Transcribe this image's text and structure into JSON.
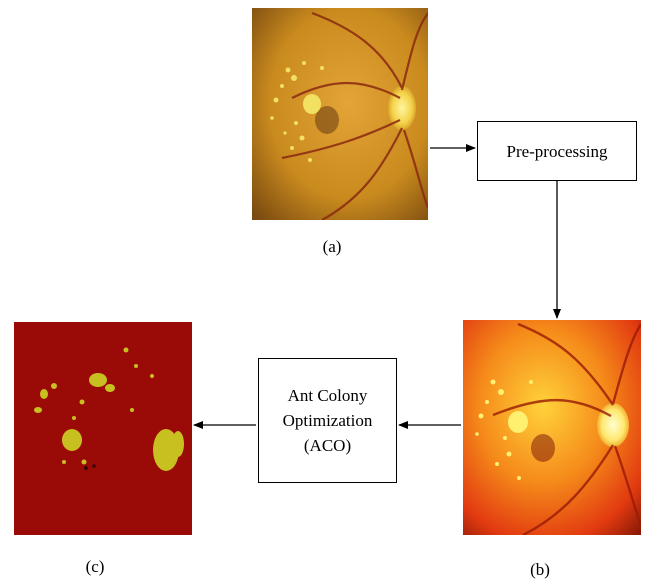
{
  "captions": {
    "a": "(a)",
    "b": "(b)",
    "c": "(c)"
  },
  "steps": {
    "preprocessing": "Pre-processing",
    "aco_line1": "Ant Colony",
    "aco_line2": "Optimization",
    "aco_line3": "(ACO)"
  },
  "colors": {
    "fundus_background": "#c98a1e",
    "enhanced_background": "#e83a10",
    "segmented_background": "#9a0a06",
    "exudate_yellow": "#c8c020"
  }
}
